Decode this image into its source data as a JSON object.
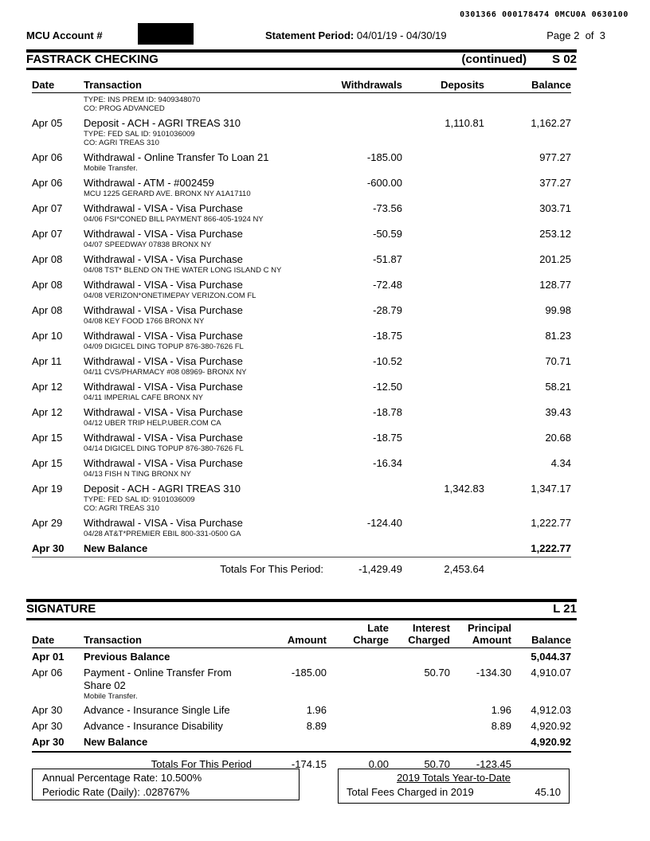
{
  "header": {
    "ocr_line": "0301366 000178474 0MCU0A 0630100",
    "account_label": "MCU Account #",
    "statement_period_label": "Statement Period:",
    "statement_period_value": "04/01/19 - 04/30/19",
    "page_label": "Page 2  of  3"
  },
  "checking": {
    "title": "FASTRACK CHECKING",
    "continued": "(continued)",
    "code": "S 02",
    "columns": [
      "Date",
      "Transaction",
      "Withdrawals",
      "Deposits",
      "Balance"
    ],
    "rows": [
      {
        "date": "",
        "transaction": "",
        "withdrawal": "",
        "deposit": "",
        "balance": "",
        "details": [
          "TYPE: INS PREM ID: 9409348070",
          "CO: PROG ADVANCED"
        ]
      },
      {
        "date": "Apr 05",
        "transaction": "Deposit - ACH - AGRI TREAS 310",
        "withdrawal": "",
        "deposit": "1,110.81",
        "balance": "1,162.27",
        "details": [
          "TYPE: FED SAL ID: 9101036009",
          "CO: AGRI TREAS 310"
        ]
      },
      {
        "date": "Apr 06",
        "transaction": "Withdrawal - Online Transfer To Loan 21",
        "withdrawal": "-185.00",
        "deposit": "",
        "balance": "977.27",
        "details": [
          "Mobile Transfer."
        ]
      },
      {
        "date": "Apr 06",
        "transaction": "Withdrawal - ATM - #002459",
        "withdrawal": "-600.00",
        "deposit": "",
        "balance": "377.27",
        "details": [
          "MCU 1225 GERARD AVE. BRONX NY A1A17110"
        ]
      },
      {
        "date": "Apr 07",
        "transaction": "Withdrawal - VISA - Visa Purchase",
        "withdrawal": "-73.56",
        "deposit": "",
        "balance": "303.71",
        "details": [
          "04/06 FSI*CONED BILL PAYMENT 866-405-1924 NY"
        ]
      },
      {
        "date": "Apr 07",
        "transaction": "Withdrawal - VISA - Visa Purchase",
        "withdrawal": "-50.59",
        "deposit": "",
        "balance": "253.12",
        "details": [
          "04/07 SPEEDWAY 07838 BRONX NY"
        ]
      },
      {
        "date": "Apr 08",
        "transaction": "Withdrawal - VISA - Visa Purchase",
        "withdrawal": "-51.87",
        "deposit": "",
        "balance": "201.25",
        "details": [
          "04/08 TST* BLEND ON THE WATER LONG ISLAND C NY"
        ]
      },
      {
        "date": "Apr 08",
        "transaction": "Withdrawal - VISA - Visa Purchase",
        "withdrawal": "-72.48",
        "deposit": "",
        "balance": "128.77",
        "details": [
          "04/08 VERIZON*ONETIMEPAY VERIZON.COM FL"
        ]
      },
      {
        "date": "Apr 08",
        "transaction": "Withdrawal - VISA - Visa Purchase",
        "withdrawal": "-28.79",
        "deposit": "",
        "balance": "99.98",
        "details": [
          "04/08 KEY FOOD 1766 BRONX NY"
        ]
      },
      {
        "date": "Apr 10",
        "transaction": "Withdrawal - VISA - Visa Purchase",
        "withdrawal": "-18.75",
        "deposit": "",
        "balance": "81.23",
        "details": [
          "04/09 DIGICEL DING TOPUP 876-380-7626 FL"
        ]
      },
      {
        "date": "Apr 11",
        "transaction": "Withdrawal - VISA - Visa Purchase",
        "withdrawal": "-10.52",
        "deposit": "",
        "balance": "70.71",
        "details": [
          "04/11 CVS/PHARMACY #08 08969- BRONX NY"
        ]
      },
      {
        "date": "Apr 12",
        "transaction": "Withdrawal - VISA - Visa Purchase",
        "withdrawal": "-12.50",
        "deposit": "",
        "balance": "58.21",
        "details": [
          "04/11 IMPERIAL CAFE BRONX NY"
        ]
      },
      {
        "date": "Apr 12",
        "transaction": "Withdrawal - VISA - Visa Purchase",
        "withdrawal": "-18.78",
        "deposit": "",
        "balance": "39.43",
        "details": [
          "04/12 UBER TRIP HELP.UBER.COM CA"
        ]
      },
      {
        "date": "Apr 15",
        "transaction": "Withdrawal - VISA - Visa Purchase",
        "withdrawal": "-18.75",
        "deposit": "",
        "balance": "20.68",
        "details": [
          "04/14 DIGICEL DING TOPUP 876-380-7626 FL"
        ]
      },
      {
        "date": "Apr 15",
        "transaction": "Withdrawal - VISA - Visa Purchase",
        "withdrawal": "-16.34",
        "deposit": "",
        "balance": "4.34",
        "details": [
          "04/13 FISH N TING BRONX NY"
        ]
      },
      {
        "date": "Apr 19",
        "transaction": "Deposit - ACH - AGRI TREAS 310",
        "withdrawal": "",
        "deposit": "1,342.83",
        "balance": "1,347.17",
        "details": [
          "TYPE: FED SAL ID: 9101036009",
          "CO: AGRI TREAS 310"
        ]
      },
      {
        "date": "Apr 29",
        "transaction": "Withdrawal - VISA - Visa Purchase",
        "withdrawal": "-124.40",
        "deposit": "",
        "balance": "1,222.77",
        "details": [
          "04/28 AT&T*PREMIER EBIL 800-331-0500 GA"
        ]
      },
      {
        "date": "Apr 30",
        "transaction": "New Balance",
        "withdrawal": "",
        "deposit": "",
        "balance": "1,222.77",
        "bold": true,
        "rule_below": true
      }
    ],
    "totals_label": "Totals For This Period:",
    "totals_withdrawals": "-1,429.49",
    "totals_deposits": "2,453.64"
  },
  "signature": {
    "title": "SIGNATURE",
    "code": "L 21",
    "columns": [
      "Date",
      "Transaction",
      "Amount",
      "Late\nCharge",
      "Interest\nCharged",
      "Principal\nAmount",
      "Balance"
    ],
    "rows": [
      {
        "date": "Apr 01",
        "transaction": "Previous Balance",
        "amount": "",
        "late": "",
        "interest": "",
        "principal": "",
        "balance": "5,044.37",
        "bold": true
      },
      {
        "date": "Apr 06",
        "transaction": "Payment - Online Transfer From Share 02",
        "amount": "-185.00",
        "late": "",
        "interest": "50.70",
        "principal": "-134.30",
        "balance": "4,910.07",
        "details": [
          "Mobile Transfer."
        ]
      },
      {
        "date": "Apr 30",
        "transaction": "Advance - Insurance Single Life",
        "amount": "1.96",
        "late": "",
        "interest": "",
        "principal": "1.96",
        "balance": "4,912.03"
      },
      {
        "date": "Apr 30",
        "transaction": "Advance - Insurance Disability",
        "amount": "8.89",
        "late": "",
        "interest": "",
        "principal": "8.89",
        "balance": "4,920.92"
      },
      {
        "date": "Apr 30",
        "transaction": "New Balance",
        "amount": "",
        "late": "",
        "interest": "",
        "principal": "",
        "balance": "4,920.92",
        "bold": true,
        "rule_below": true
      }
    ],
    "totals_label": "Totals For This Period",
    "totals_amount": "-174.15",
    "totals_late_charge": "0.00",
    "totals_interest_charged": "50.70",
    "totals_principal_amount": "-123.45"
  },
  "footer": {
    "apr_line1": "Annual Percentage Rate: 10.500%",
    "apr_line2": "Periodic Rate (Daily): .028767%",
    "ytd_title": "2019 Totals Year-to-Date",
    "ytd_label": "Total Fees Charged in 2019",
    "ytd_value": "45.10"
  }
}
